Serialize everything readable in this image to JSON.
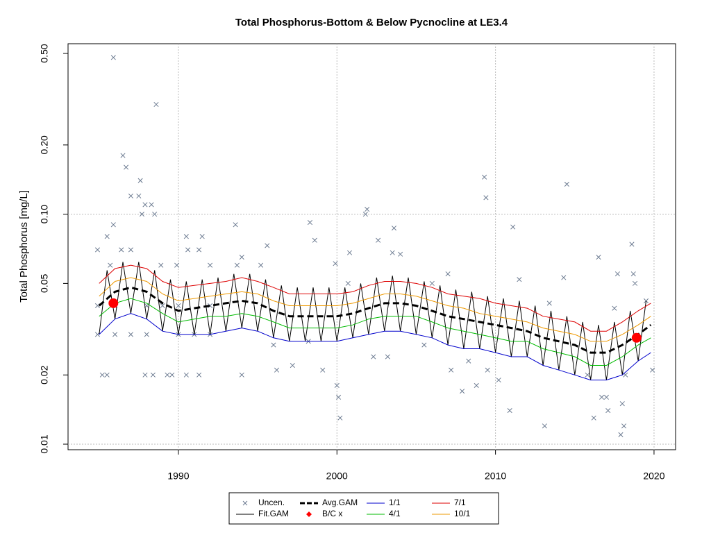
{
  "chart_data": {
    "type": "line",
    "title": "Total Phosphorus-Bottom & Below Pycnocline at LE3.4",
    "y_label": "Total Phosphorus [mg/L]",
    "log_y": true,
    "xlim": [
      1983.04,
      2021.36
    ],
    "ylim": [
      0.00946,
      0.551
    ],
    "xticks": [
      1990,
      2000,
      2010,
      2020
    ],
    "yticks": [
      0.01,
      0.02,
      0.05,
      {
        "value": 0.1,
        "label": "0.10"
      },
      {
        "value": 0.2,
        "label": "0.20"
      },
      {
        "value": 0.5,
        "label": "0.50"
      }
    ],
    "grid": true,
    "ygrid": [
      0.01,
      0.1
    ],
    "legend": "bottom",
    "series": [
      {
        "name": "Uncen.",
        "style": "cross",
        "color": "#6b7a90",
        "x": [
          1985.9,
          1988.6,
          1986.5,
          1986.7,
          1987.6,
          1987.0,
          1987.5,
          1987.9,
          1988.3,
          1988.5,
          1987.7,
          1985.9,
          1985.5,
          1986.4,
          1984.9,
          1987.0,
          1985.7,
          1988.9,
          1989.9,
          1990.5,
          1990.6,
          1991.3,
          1991.5,
          1992.0,
          1993.6,
          1993.7,
          1994.0,
          1995.2,
          1995.6,
          1985.2,
          1985.5,
          1987.9,
          1988.4,
          1989.3,
          1989.6,
          1990.5,
          1991.3,
          1994.0,
          1984.9,
          1986.0,
          1987.0,
          1988.0,
          1990.0,
          1991.0,
          1992.0,
          1984.9,
          1986.0,
          1988.0,
          1989.0,
          1990.0,
          1992.0,
          1996.2,
          1996.0,
          1997.2,
          1998.2,
          1998.3,
          1998.6,
          1999.1,
          1999.9,
          2000.0,
          2000.1,
          2000.2,
          2000.7,
          2000.8,
          2001.8,
          2001.9,
          2002.3,
          2002.6,
          2003.2,
          2003.5,
          2003.6,
          2004.0,
          2005.5,
          2006.0,
          2007.0,
          2007.2,
          2007.9,
          2008.3,
          2008.8,
          2009.3,
          2009.4,
          2009.5,
          2010.2,
          2010.9,
          2011.1,
          2011.5,
          2013.1,
          2013.4,
          2014.5,
          2014.3,
          2015.8,
          2016.2,
          2016.5,
          2016.7,
          2017.0,
          2017.1,
          2017.5,
          2017.7,
          2017.9,
          2018.0,
          2018.1,
          2018.2,
          2018.6,
          2018.7,
          2018.8,
          2019.5,
          2019.9
        ],
        "values": [
          0.48,
          0.3,
          0.18,
          0.16,
          0.14,
          0.12,
          0.12,
          0.11,
          0.11,
          0.1,
          0.1,
          0.09,
          0.08,
          0.07,
          0.07,
          0.07,
          0.06,
          0.06,
          0.06,
          0.08,
          0.07,
          0.07,
          0.08,
          0.06,
          0.09,
          0.06,
          0.065,
          0.06,
          0.073,
          0.02,
          0.02,
          0.02,
          0.02,
          0.02,
          0.02,
          0.02,
          0.02,
          0.02,
          0.03,
          0.03,
          0.03,
          0.03,
          0.03,
          0.03,
          0.03,
          0.04,
          0.04,
          0.04,
          0.04,
          0.04,
          0.04,
          0.021,
          0.027,
          0.022,
          0.028,
          0.092,
          0.077,
          0.021,
          0.061,
          0.018,
          0.016,
          0.013,
          0.05,
          0.068,
          0.1,
          0.105,
          0.024,
          0.077,
          0.024,
          0.068,
          0.087,
          0.067,
          0.027,
          0.05,
          0.055,
          0.021,
          0.017,
          0.023,
          0.018,
          0.145,
          0.118,
          0.021,
          0.019,
          0.014,
          0.088,
          0.052,
          0.012,
          0.041,
          0.135,
          0.053,
          0.02,
          0.013,
          0.065,
          0.016,
          0.016,
          0.014,
          0.039,
          0.055,
          0.011,
          0.015,
          0.012,
          0.02,
          0.074,
          0.055,
          0.05,
          0.042,
          0.021
        ]
      },
      {
        "name": "Fit.GAM",
        "style": "line",
        "color": "#000000",
        "x": [
          1985,
          1985.5,
          1986,
          1986.5,
          1987,
          1987.5,
          1988,
          1988.5,
          1989,
          1989.5,
          1990,
          1990.5,
          1991,
          1991.5,
          1992,
          1992.5,
          1993,
          1993.5,
          1994,
          1994.5,
          1995,
          1995.5,
          1996,
          1996.5,
          1997,
          1997.5,
          1998,
          1998.5,
          1999,
          1999.5,
          2000,
          2000.5,
          2001,
          2001.5,
          2002,
          2002.5,
          2003,
          2003.5,
          2004,
          2004.5,
          2005,
          2005.5,
          2006,
          2006.5,
          2007,
          2007.5,
          2008,
          2008.5,
          2009,
          2009.5,
          2010,
          2010.5,
          2011,
          2011.5,
          2012,
          2012.5,
          2013,
          2013.5,
          2014,
          2014.5,
          2015,
          2015.5,
          2016,
          2016.5,
          2017,
          2017.5,
          2018,
          2018.5,
          2019,
          2019.5
        ],
        "values": [
          0.03,
          0.057,
          0.035,
          0.062,
          0.037,
          0.062,
          0.035,
          0.057,
          0.031,
          0.052,
          0.03,
          0.051,
          0.03,
          0.052,
          0.03,
          0.053,
          0.031,
          0.055,
          0.032,
          0.055,
          0.031,
          0.052,
          0.029,
          0.049,
          0.028,
          0.048,
          0.028,
          0.048,
          0.028,
          0.048,
          0.028,
          0.048,
          0.029,
          0.05,
          0.03,
          0.053,
          0.031,
          0.054,
          0.031,
          0.053,
          0.03,
          0.051,
          0.029,
          0.049,
          0.027,
          0.047,
          0.026,
          0.046,
          0.026,
          0.044,
          0.025,
          0.043,
          0.024,
          0.042,
          0.024,
          0.04,
          0.022,
          0.038,
          0.021,
          0.036,
          0.02,
          0.034,
          0.019,
          0.033,
          0.019,
          0.034,
          0.02,
          0.038,
          0.023,
          0.042
        ]
      },
      {
        "name": "Avg.GAM",
        "style": "dashed",
        "color": "#000000",
        "x": [
          1985,
          1986,
          1987,
          1988,
          1989,
          1990,
          1991,
          1992,
          1993,
          1994,
          1995,
          1996,
          1997,
          1998,
          1999,
          2000,
          2001,
          2002,
          2003,
          2004,
          2005,
          2006,
          2007,
          2008,
          2009,
          2010,
          2011,
          2012,
          2013,
          2014,
          2015,
          2016,
          2017,
          2018,
          2019,
          2019.8
        ],
        "values": [
          0.04,
          0.046,
          0.048,
          0.046,
          0.041,
          0.038,
          0.039,
          0.04,
          0.041,
          0.042,
          0.041,
          0.038,
          0.036,
          0.036,
          0.036,
          0.036,
          0.037,
          0.039,
          0.041,
          0.041,
          0.04,
          0.038,
          0.036,
          0.035,
          0.034,
          0.033,
          0.032,
          0.031,
          0.029,
          0.028,
          0.027,
          0.025,
          0.025,
          0.027,
          0.03,
          0.033
        ]
      },
      {
        "name": "B/C x",
        "style": "dot",
        "color": "#ff0000",
        "x": [
          1985.9,
          2018.9
        ],
        "values": [
          0.041,
          0.029
        ]
      },
      {
        "name": "1/1",
        "style": "line",
        "color": "#0000cc",
        "x": [
          1985,
          1986,
          1987,
          1988,
          1989,
          1990,
          1991,
          1992,
          1993,
          1994,
          1995,
          1996,
          1997,
          1998,
          1999,
          2000,
          2001,
          2002,
          2003,
          2004,
          2005,
          2006,
          2007,
          2008,
          2009,
          2010,
          2011,
          2012,
          2013,
          2014,
          2015,
          2016,
          2017,
          2018,
          2019,
          2019.8
        ],
        "values": [
          0.03,
          0.035,
          0.037,
          0.035,
          0.031,
          0.03,
          0.03,
          0.03,
          0.031,
          0.032,
          0.031,
          0.029,
          0.028,
          0.028,
          0.028,
          0.028,
          0.029,
          0.03,
          0.031,
          0.031,
          0.03,
          0.029,
          0.027,
          0.026,
          0.026,
          0.025,
          0.024,
          0.024,
          0.022,
          0.021,
          0.02,
          0.019,
          0.019,
          0.02,
          0.023,
          0.025
        ]
      },
      {
        "name": "4/1",
        "style": "line",
        "color": "#00bb00",
        "x": [
          1985,
          1986,
          1987,
          1988,
          1989,
          1990,
          1991,
          1992,
          1993,
          1994,
          1995,
          1996,
          1997,
          1998,
          1999,
          2000,
          2001,
          2002,
          2003,
          2004,
          2005,
          2006,
          2007,
          2008,
          2009,
          2010,
          2011,
          2012,
          2013,
          2014,
          2015,
          2016,
          2017,
          2018,
          2019,
          2019.8
        ],
        "values": [
          0.036,
          0.041,
          0.043,
          0.041,
          0.037,
          0.034,
          0.035,
          0.036,
          0.036,
          0.037,
          0.036,
          0.034,
          0.032,
          0.032,
          0.032,
          0.032,
          0.033,
          0.035,
          0.036,
          0.036,
          0.036,
          0.034,
          0.032,
          0.031,
          0.03,
          0.029,
          0.028,
          0.028,
          0.026,
          0.025,
          0.024,
          0.022,
          0.022,
          0.024,
          0.027,
          0.029
        ]
      },
      {
        "name": "7/1",
        "style": "line",
        "color": "#dd0000",
        "x": [
          1985,
          1986,
          1987,
          1988,
          1989,
          1990,
          1991,
          1992,
          1993,
          1994,
          1995,
          1996,
          1997,
          1998,
          1999,
          2000,
          2001,
          2002,
          2003,
          2004,
          2005,
          2006,
          2007,
          2008,
          2009,
          2010,
          2011,
          2012,
          2013,
          2014,
          2015,
          2016,
          2017,
          2018,
          2019,
          2019.8
        ],
        "values": [
          0.05,
          0.058,
          0.06,
          0.058,
          0.051,
          0.048,
          0.049,
          0.05,
          0.051,
          0.053,
          0.051,
          0.048,
          0.045,
          0.045,
          0.045,
          0.045,
          0.046,
          0.049,
          0.051,
          0.051,
          0.05,
          0.048,
          0.045,
          0.044,
          0.043,
          0.041,
          0.04,
          0.039,
          0.036,
          0.035,
          0.034,
          0.031,
          0.031,
          0.034,
          0.038,
          0.041
        ]
      },
      {
        "name": "10/1",
        "style": "line",
        "color": "#ee9900",
        "x": [
          1985,
          1986,
          1987,
          1988,
          1989,
          1990,
          1991,
          1992,
          1993,
          1994,
          1995,
          1996,
          1997,
          1998,
          1999,
          2000,
          2001,
          2002,
          2003,
          2004,
          2005,
          2006,
          2007,
          2008,
          2009,
          2010,
          2011,
          2012,
          2013,
          2014,
          2015,
          2016,
          2017,
          2018,
          2019,
          2019.8
        ],
        "values": [
          0.044,
          0.051,
          0.053,
          0.051,
          0.045,
          0.042,
          0.043,
          0.044,
          0.045,
          0.046,
          0.045,
          0.042,
          0.04,
          0.04,
          0.04,
          0.04,
          0.041,
          0.043,
          0.045,
          0.045,
          0.044,
          0.042,
          0.04,
          0.039,
          0.037,
          0.036,
          0.035,
          0.034,
          0.032,
          0.031,
          0.03,
          0.028,
          0.028,
          0.03,
          0.033,
          0.036
        ]
      }
    ]
  }
}
